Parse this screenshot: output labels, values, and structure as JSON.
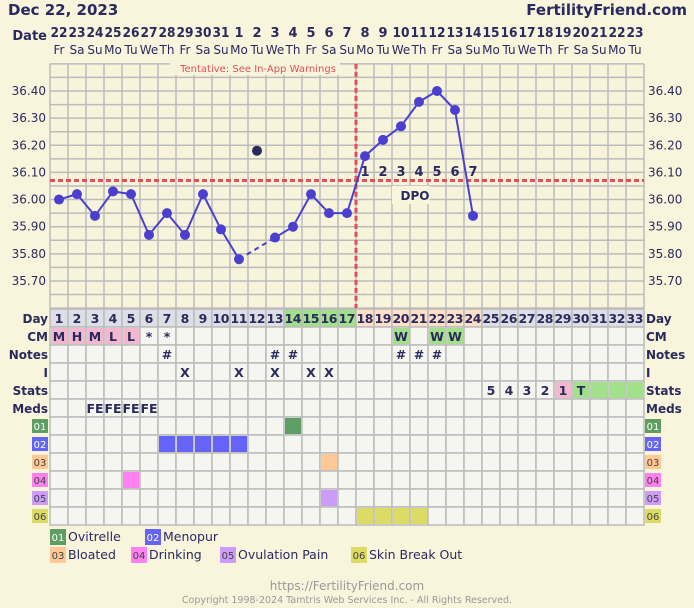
{
  "header": {
    "date": "Dec 22, 2023",
    "site": "FertilityFriend.com",
    "date_label": "Date"
  },
  "tentative_note": "Tentative: See In-App Warnings",
  "dates": [
    "22",
    "23",
    "24",
    "25",
    "26",
    "27",
    "28",
    "29",
    "30",
    "31",
    "1",
    "2",
    "3",
    "4",
    "5",
    "6",
    "7",
    "8",
    "9",
    "10",
    "11",
    "12",
    "13",
    "14",
    "15",
    "16",
    "17",
    "18",
    "19",
    "20",
    "21",
    "22",
    "23"
  ],
  "weekdays": [
    "Fr",
    "Sa",
    "Su",
    "Mo",
    "Tu",
    "We",
    "Th",
    "Fr",
    "Sa",
    "Su",
    "Mo",
    "Tu",
    "We",
    "Th",
    "Fr",
    "Sa",
    "Su",
    "Mo",
    "Tu",
    "We",
    "Th",
    "Fr",
    "Sa",
    "Su",
    "Mo",
    "Tu",
    "We",
    "Th",
    "Fr",
    "Sa",
    "Su",
    "Mo",
    "Tu"
  ],
  "row_labels": {
    "day": "Day",
    "cm": "CM",
    "notes": "Notes",
    "i": "I",
    "stats": "Stats",
    "meds": "Meds"
  },
  "chart_data": {
    "type": "line",
    "xlabel": "Day",
    "ylim": [
      35.6,
      36.5
    ],
    "y_ticks": [
      "36.40",
      "36.30",
      "36.20",
      "36.10",
      "36.00",
      "35.90",
      "35.80",
      "35.70"
    ],
    "days": [
      1,
      2,
      3,
      4,
      5,
      6,
      7,
      8,
      9,
      10,
      11,
      12,
      13,
      14,
      15,
      16,
      17,
      18,
      19,
      20,
      21,
      22,
      23,
      24
    ],
    "temperatures": [
      36.0,
      36.02,
      35.94,
      36.03,
      36.02,
      35.87,
      35.95,
      35.87,
      36.02,
      35.89,
      35.78,
      36.18,
      35.86,
      35.9,
      36.02,
      35.95,
      35.95,
      36.16,
      36.22,
      36.27,
      36.36,
      36.4,
      36.33,
      35.94
    ],
    "discarded_days": [
      12
    ],
    "coverline": 36.07,
    "ovulation_day": 17,
    "dpo_labels": [
      "1",
      "2",
      "3",
      "4",
      "5",
      "6",
      "7"
    ],
    "dpo_start_day": 18,
    "dpo_text": "DPO",
    "grid": true,
    "colors": {
      "line": "#4b3fd0",
      "coverline": "#e0505a",
      "ovulation": "#e0505a"
    }
  },
  "day_numbers": [
    "1",
    "2",
    "3",
    "4",
    "5",
    "6",
    "7",
    "8",
    "9",
    "10",
    "11",
    "12",
    "13",
    "14",
    "15",
    "16",
    "17",
    "18",
    "19",
    "20",
    "21",
    "22",
    "23",
    "24",
    "25",
    "26",
    "27",
    "28",
    "29",
    "30",
    "31",
    "32",
    "33"
  ],
  "day_colors": {
    "fertile_days": [
      14,
      15,
      16,
      17
    ],
    "luteal_days": [
      18,
      19,
      20,
      21,
      22,
      23,
      24
    ],
    "fertile": "#a2e08a",
    "luteal": "#fde0c6",
    "normal": "#dedee6"
  },
  "cm": [
    {
      "day": 1,
      "v": "M",
      "c": "#f2b8d0"
    },
    {
      "day": 2,
      "v": "H",
      "c": "#f2b8d0"
    },
    {
      "day": 3,
      "v": "M",
      "c": "#f2b8d0"
    },
    {
      "day": 4,
      "v": "L",
      "c": "#f2b8d0"
    },
    {
      "day": 5,
      "v": "L",
      "c": "#f2b8d0"
    },
    {
      "day": 6,
      "v": "*"
    },
    {
      "day": 7,
      "v": "*"
    },
    {
      "day": 20,
      "v": "W",
      "c": "#a2e08a"
    },
    {
      "day": 22,
      "v": "W",
      "c": "#a2e08a"
    },
    {
      "day": 23,
      "v": "W",
      "c": "#a2e08a"
    }
  ],
  "notes": [
    {
      "day": 7,
      "v": "#"
    },
    {
      "day": 13,
      "v": "#"
    },
    {
      "day": 14,
      "v": "#"
    },
    {
      "day": 20,
      "v": "#"
    },
    {
      "day": 21,
      "v": "#"
    },
    {
      "day": 22,
      "v": "#"
    }
  ],
  "intercourse": [
    {
      "day": 8,
      "v": "X"
    },
    {
      "day": 11,
      "v": "X"
    },
    {
      "day": 13,
      "v": "X"
    },
    {
      "day": 15,
      "v": "X"
    },
    {
      "day": 16,
      "v": "X"
    }
  ],
  "stats": [
    {
      "day": 25,
      "v": "5"
    },
    {
      "day": 26,
      "v": "4"
    },
    {
      "day": 27,
      "v": "3"
    },
    {
      "day": 28,
      "v": "2"
    },
    {
      "day": 29,
      "v": "1",
      "c": "#f2b8d0"
    },
    {
      "day": 30,
      "v": "T",
      "c": "#a2e08a"
    },
    {
      "day": 31,
      "v": "",
      "c": "#a2e08a"
    },
    {
      "day": 32,
      "v": "",
      "c": "#a2e08a"
    },
    {
      "day": 33,
      "v": "",
      "c": "#a2e08a"
    }
  ],
  "meds": [
    {
      "day": 3,
      "v": "FE"
    },
    {
      "day": 4,
      "v": "FE"
    },
    {
      "day": 5,
      "v": "FE"
    },
    {
      "day": 6,
      "v": "FE"
    }
  ],
  "custom_rows": [
    {
      "code": "01",
      "label": "Ovitrelle",
      "color": "#5f9e62",
      "text_color": "#ffffff",
      "days": [
        14
      ]
    },
    {
      "code": "02",
      "label": "Menopur",
      "color": "#6464f8",
      "text_color": "#ffffff",
      "days": [
        7,
        8,
        9,
        10,
        11
      ]
    },
    {
      "code": "03",
      "label": "Bloated",
      "color": "#ffc894",
      "text_color": "#444444",
      "days": [
        16
      ]
    },
    {
      "code": "04",
      "label": "Drinking",
      "color": "#ff80f0",
      "text_color": "#444444",
      "days": [
        5
      ]
    },
    {
      "code": "05",
      "label": "Ovulation Pain",
      "color": "#cc9cf8",
      "text_color": "#444444",
      "days": [
        16
      ]
    },
    {
      "code": "06",
      "label": "Skin Break Out",
      "color": "#dcdc64",
      "text_color": "#444444",
      "days": [
        18,
        19,
        20,
        21
      ]
    }
  ],
  "footer": {
    "url": "https://FertilityFriend.com",
    "copyright": "Copyright 1998-2024 Tamtris Web Services Inc. - All Rights Reserved."
  }
}
